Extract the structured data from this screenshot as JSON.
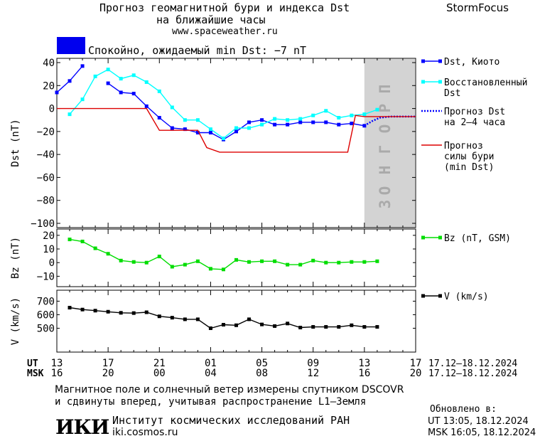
{
  "header": {
    "title_line1": "Прогноз геомагнитной бури и индекса Dst",
    "title_line2": "на ближайшие часы",
    "url": "www.spaceweather.ru",
    "brand": "StormFocus",
    "status_text": "Спокойно, ожидаемый min Dst: −7 nT",
    "status_color": "#0000ee"
  },
  "forecast_band_label": "ПРОГНОЗ",
  "time_axis": {
    "ut_label": "UT",
    "msk_label": "MSK",
    "ut_ticks": [
      "13",
      "17",
      "21",
      "01",
      "05",
      "09",
      "13",
      "17"
    ],
    "msk_ticks": [
      "16",
      "20",
      "00",
      "04",
      "08",
      "12",
      "16",
      "20"
    ],
    "ut_date_range": "17.12–18.12.2024",
    "msk_date_range": "17.12–18.12.2024"
  },
  "footer": {
    "note_line1": "Магнитное поле и солнечный ветер измерены спутником DSCOVR",
    "note_line2": "и сдвинуты вперед, учитывая распространение L1–Земля",
    "updated_label": "Обновлено в:",
    "updated_ut": "UT   13:05, 18.12.2024",
    "updated_msk": "MSK 16:05, 18.12.2024",
    "logo_text": "ИКИ",
    "institute": "Институт космических исследований РАН",
    "institute_url": "iki.cosmos.ru"
  },
  "chart_data": [
    {
      "type": "line",
      "ylabel": "Dst (nT)",
      "ylim": [
        -100,
        40
      ],
      "yticks": [
        40,
        20,
        0,
        -20,
        -40,
        -60,
        -80,
        -100
      ],
      "x_unit": "hours UT from 13:00 17.12.2024",
      "xlim": [
        0,
        28
      ],
      "forecast_band_x": [
        24,
        28
      ],
      "series": [
        {
          "name": "Dst, Киото",
          "color": "#0000ff",
          "marker": "square",
          "segments": [
            [
              [
                0,
                14
              ],
              [
                1,
                24
              ],
              [
                2,
                37
              ]
            ],
            [
              [
                4,
                22
              ],
              [
                5,
                14
              ],
              [
                6,
                13
              ],
              [
                7,
                2
              ],
              [
                8,
                -8
              ],
              [
                9,
                -17
              ],
              [
                10,
                -18
              ],
              [
                11,
                -21
              ],
              [
                12,
                -21
              ],
              [
                13,
                -27
              ],
              [
                14,
                -20
              ],
              [
                15,
                -12
              ],
              [
                16,
                -10
              ],
              [
                17,
                -14
              ],
              [
                18,
                -14
              ],
              [
                19,
                -12
              ],
              [
                20,
                -12
              ],
              [
                21,
                -12
              ],
              [
                22,
                -14
              ],
              [
                23,
                -13
              ],
              [
                24,
                -15
              ]
            ]
          ]
        },
        {
          "name": "Восстановленный Dst",
          "color": "#00ffff",
          "marker": "square",
          "segments": [
            [
              [
                1,
                -5
              ],
              [
                2,
                8
              ],
              [
                3,
                28
              ],
              [
                4,
                34
              ],
              [
                5,
                26
              ],
              [
                6,
                29
              ],
              [
                7,
                23
              ],
              [
                8,
                15
              ],
              [
                9,
                1
              ],
              [
                10,
                -10
              ],
              [
                11,
                -10
              ],
              [
                12,
                -18
              ],
              [
                13,
                -26
              ],
              [
                14,
                -17
              ],
              [
                15,
                -17
              ],
              [
                16,
                -14
              ],
              [
                17,
                -9
              ],
              [
                18,
                -10
              ],
              [
                19,
                -9
              ],
              [
                20,
                -6
              ],
              [
                21,
                -2
              ],
              [
                22,
                -8
              ],
              [
                23,
                -6
              ],
              [
                24,
                -5
              ],
              [
                25,
                -1
              ]
            ]
          ]
        },
        {
          "name": "Прогноз Dst на 2–4 часа",
          "color": "#0000ff",
          "dashed": true,
          "segments": [
            [
              [
                24,
                -15
              ],
              [
                24.6,
                -11
              ],
              [
                25.2,
                -8
              ],
              [
                26,
                -7
              ],
              [
                28,
                -7
              ]
            ]
          ]
        },
        {
          "name": "Прогноз силы бури (min Dst)",
          "color": "#dd0000",
          "marker": "none",
          "segments": [
            [
              [
                0,
                0
              ],
              [
                7,
                0
              ],
              [
                8,
                -19
              ],
              [
                11,
                -19
              ],
              [
                11.7,
                -34
              ],
              [
                12.7,
                -38
              ],
              [
                22.7,
                -38
              ],
              [
                23.3,
                -6
              ],
              [
                24,
                -7
              ],
              [
                28,
                -7
              ]
            ]
          ]
        }
      ]
    },
    {
      "type": "line",
      "ylabel": "Bz (nT)",
      "ylim": [
        -15,
        22
      ],
      "yticks": [
        20,
        10,
        0,
        -10
      ],
      "x_unit": "hours UT from 13:00 17.12.2024",
      "xlim": [
        0,
        28
      ],
      "series": [
        {
          "name": "Bz (nT, GSM)",
          "color": "#00dd00",
          "marker": "square",
          "segments": [
            [
              [
                1,
                17
              ],
              [
                2,
                15.5
              ],
              [
                3,
                10.5
              ],
              [
                4,
                6.5
              ],
              [
                5,
                1.5
              ],
              [
                6,
                0.5
              ],
              [
                7,
                0
              ],
              [
                8,
                4.5
              ],
              [
                9,
                -3
              ],
              [
                10,
                -1.5
              ],
              [
                11,
                1
              ],
              [
                12,
                -4.5
              ],
              [
                13,
                -5
              ],
              [
                14,
                2
              ],
              [
                15,
                0.5
              ],
              [
                16,
                1
              ],
              [
                17,
                1
              ],
              [
                18,
                -1.5
              ],
              [
                19,
                -1.5
              ],
              [
                20,
                1.5
              ],
              [
                21,
                0
              ],
              [
                22,
                0
              ],
              [
                23,
                0.5
              ],
              [
                24,
                0.5
              ],
              [
                25,
                1
              ]
            ]
          ]
        }
      ]
    },
    {
      "type": "line",
      "ylabel": "V (km/s)",
      "ylim": [
        350,
        760
      ],
      "yticks": [
        700,
        600,
        500
      ],
      "x_unit": "hours UT from 13:00 17.12.2024",
      "xlim": [
        0,
        28
      ],
      "series": [
        {
          "name": "V (km/s)",
          "color": "#000000",
          "marker": "square",
          "segments": [
            [
              [
                1,
                652
              ],
              [
                2,
                638
              ],
              [
                3,
                630
              ],
              [
                4,
                622
              ],
              [
                5,
                614
              ],
              [
                6,
                612
              ],
              [
                7,
                618
              ],
              [
                8,
                588
              ],
              [
                9,
                578
              ],
              [
                10,
                566
              ],
              [
                11,
                566
              ],
              [
                12,
                500
              ],
              [
                13,
                526
              ],
              [
                14,
                522
              ],
              [
                15,
                566
              ],
              [
                16,
                528
              ],
              [
                17,
                516
              ],
              [
                18,
                535
              ],
              [
                19,
                505
              ],
              [
                20,
                510
              ],
              [
                21,
                510
              ],
              [
                22,
                510
              ],
              [
                23,
                522
              ],
              [
                24,
                510
              ],
              [
                25,
                510
              ]
            ]
          ]
        }
      ]
    }
  ]
}
